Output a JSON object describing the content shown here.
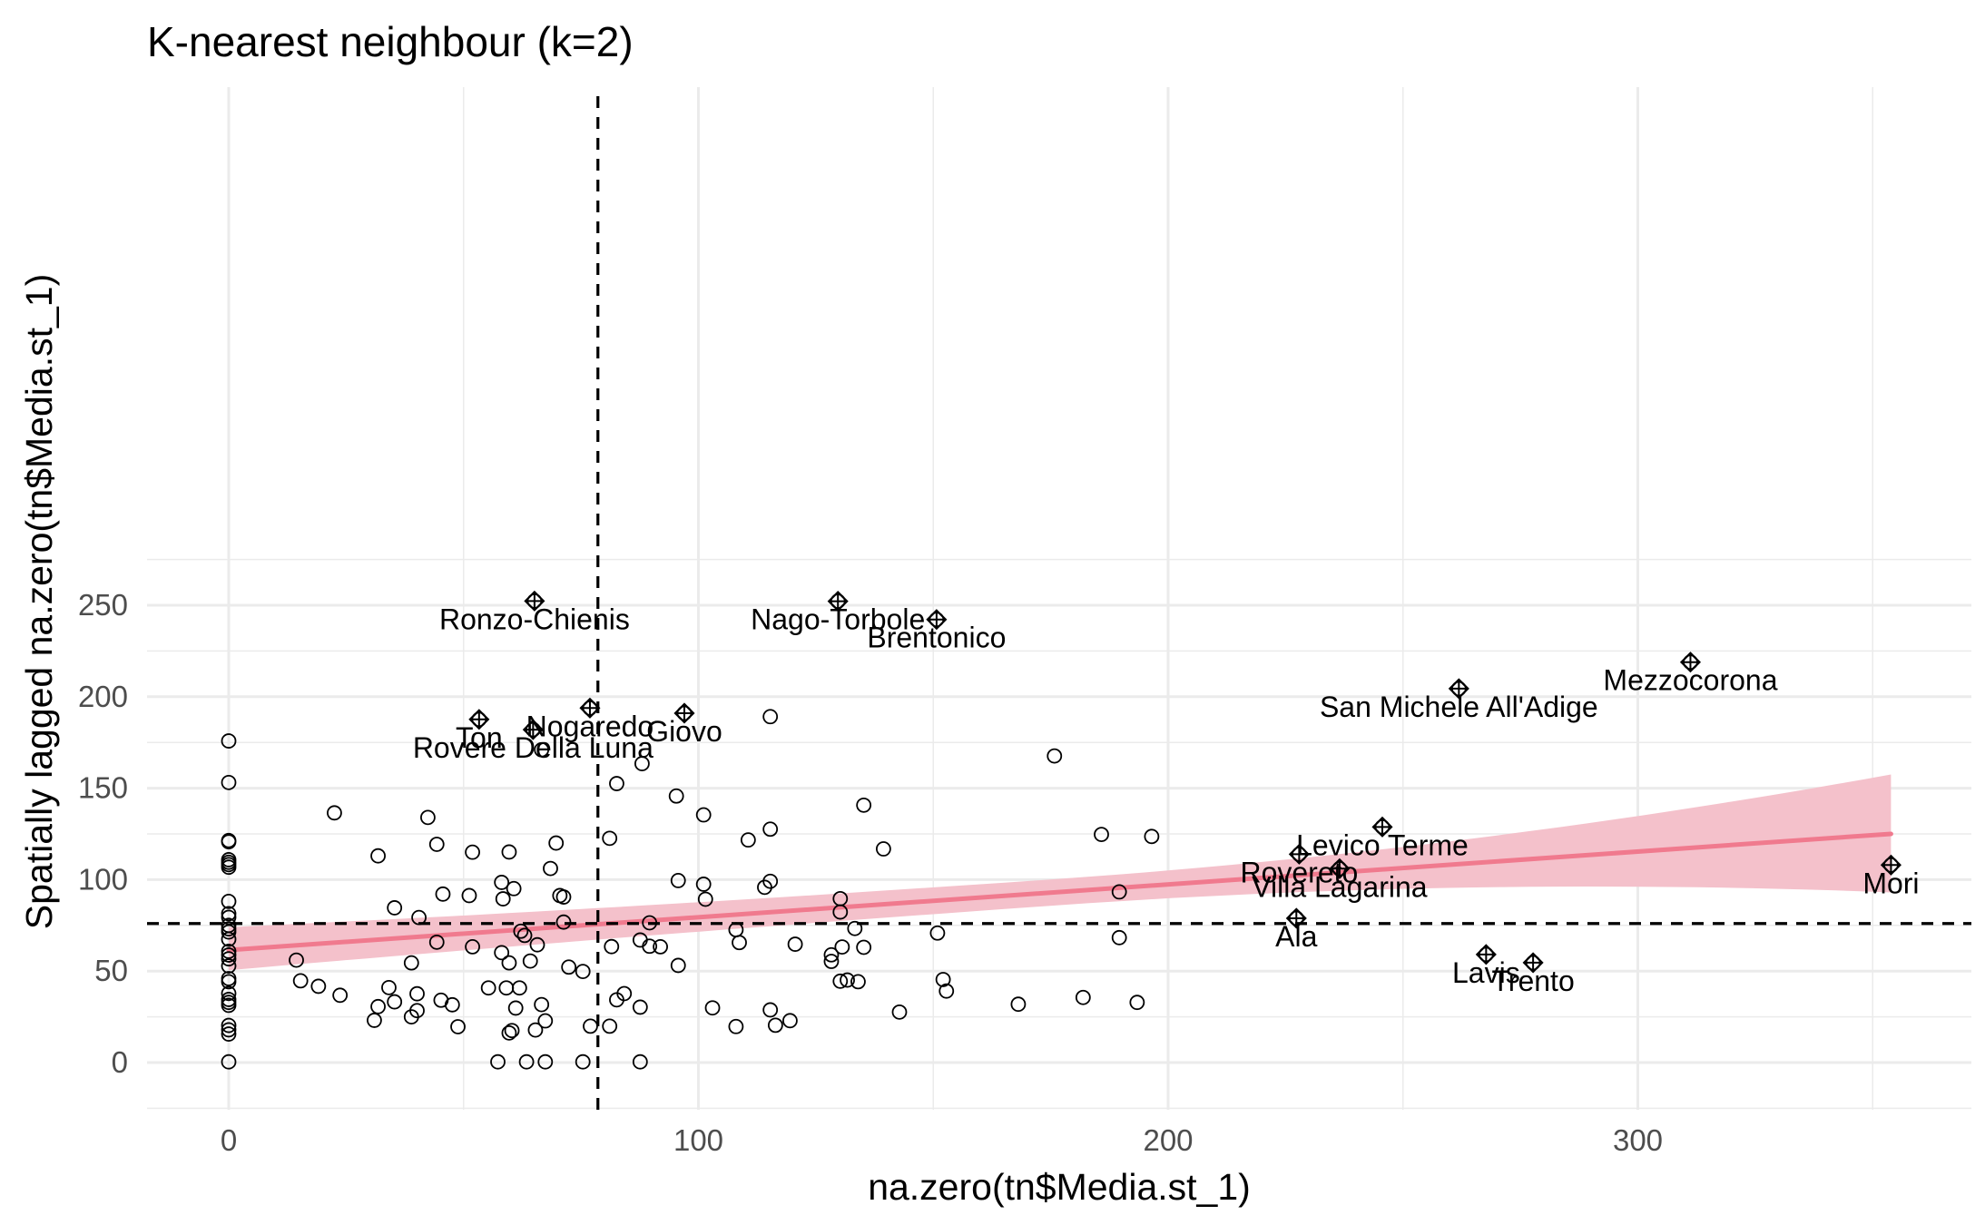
{
  "chart_data": {
    "type": "scatter",
    "title": "K-nearest neighbour (k=2)",
    "xlabel": "na.zero(tn$Media.st_1)",
    "ylabel": "Spatially lagged na.zero(tn$Media.st_1)",
    "xlim": [
      -17,
      370
    ],
    "ylim": [
      -12,
      265
    ],
    "xticks": [
      0,
      100,
      200,
      300
    ],
    "yticks": [
      0,
      50,
      100,
      150,
      200,
      250
    ],
    "xtick_labels": [
      "0",
      "100",
      "200",
      "300"
    ],
    "ytick_labels": [
      "0",
      "50",
      "100",
      "150",
      "200",
      "250"
    ],
    "grid": true,
    "reference_lines": {
      "x_mean": 78.6,
      "y_mean": 76.0
    },
    "regression": {
      "intercept": 61.5,
      "slope": 0.1795,
      "x_range": [
        0,
        353.9
      ],
      "ci_lower_at_min": 50.5,
      "ci_upper_at_min": 74.0,
      "ci_lower_at_max": 93.0,
      "ci_upper_at_max": 157.5
    },
    "colors": {
      "fit_line": "#F07A8E",
      "ci_band": "#F4C1CB",
      "points": "#000000",
      "grid": "#EBEBEB"
    },
    "influential_points": [
      {
        "label": "Ronzo-Chienis",
        "x": 65.1,
        "y": 252.3
      },
      {
        "label": "Nago-Torbole",
        "x": 129.7,
        "y": 252.2
      },
      {
        "label": "Brentonico",
        "x": 150.7,
        "y": 242.2
      },
      {
        "label": "Mezzocorona",
        "x": 311.2,
        "y": 218.9
      },
      {
        "label": "San Michele All'Adige",
        "x": 261.9,
        "y": 204.4
      },
      {
        "label": "Nogaredo",
        "x": 76.9,
        "y": 193.8
      },
      {
        "label": "Giovo",
        "x": 97.0,
        "y": 191.0
      },
      {
        "label": "Ton",
        "x": 53.3,
        "y": 187.6
      },
      {
        "label": "Rovere Della Luna",
        "x": 64.8,
        "y": 182.0
      },
      {
        "label": "Levico Terme",
        "x": 245.6,
        "y": 128.8
      },
      {
        "label": "Rovereto",
        "x": 227.9,
        "y": 113.9
      },
      {
        "label": "Villa Lagarina",
        "x": 236.5,
        "y": 106.0
      },
      {
        "label": "Mori",
        "x": 353.9,
        "y": 108.0
      },
      {
        "label": "Ala",
        "x": 227.3,
        "y": 78.9
      },
      {
        "label": "Lavis",
        "x": 267.7,
        "y": 59.1
      },
      {
        "label": "Trento",
        "x": 277.7,
        "y": 54.6
      }
    ],
    "points": [
      [
        0,
        175.8
      ],
      [
        0,
        153.1
      ],
      [
        0,
        121.4
      ],
      [
        0,
        120.7
      ],
      [
        0,
        110.9
      ],
      [
        0,
        109.5
      ],
      [
        0,
        108.2
      ],
      [
        0,
        106.8
      ],
      [
        0,
        88.1
      ],
      [
        0,
        81.4
      ],
      [
        0,
        79.4
      ],
      [
        0,
        75.0
      ],
      [
        0,
        73.1
      ],
      [
        0,
        71.4
      ],
      [
        0,
        67.4
      ],
      [
        0,
        60.8
      ],
      [
        0,
        58.8
      ],
      [
        0,
        56.7
      ],
      [
        0,
        52.8
      ],
      [
        0,
        45.9
      ],
      [
        0,
        44.2
      ],
      [
        0,
        37.8
      ],
      [
        0,
        34.5
      ],
      [
        0,
        32.9
      ],
      [
        0,
        31.3
      ],
      [
        0,
        20.3
      ],
      [
        0,
        17.9
      ],
      [
        0,
        15.6
      ],
      [
        0,
        0.4
      ],
      [
        14.4,
        56.0
      ],
      [
        15.3,
        44.7
      ],
      [
        19.1,
        41.7
      ],
      [
        22.5,
        136.5
      ],
      [
        23.7,
        36.8
      ],
      [
        31.0,
        23.1
      ],
      [
        31.8,
        30.6
      ],
      [
        31.8,
        113.0
      ],
      [
        34.1,
        41.0
      ],
      [
        35.3,
        84.6
      ],
      [
        35.3,
        33.2
      ],
      [
        38.9,
        25.0
      ],
      [
        38.9,
        54.5
      ],
      [
        40.1,
        37.6
      ],
      [
        40.1,
        28.4
      ],
      [
        40.5,
        79.3
      ],
      [
        42.4,
        134.0
      ],
      [
        44.3,
        119.3
      ],
      [
        44.3,
        65.8
      ],
      [
        45.2,
        34.1
      ],
      [
        45.6,
        92.1
      ],
      [
        47.6,
        31.6
      ],
      [
        48.8,
        19.6
      ],
      [
        51.2,
        91.3
      ],
      [
        51.9,
        63.3
      ],
      [
        51.9,
        115.0
      ],
      [
        55.3,
        40.8
      ],
      [
        57.3,
        0.4
      ],
      [
        58.1,
        98.5
      ],
      [
        58.1,
        60.1
      ],
      [
        58.4,
        89.5
      ],
      [
        59.1,
        40.8
      ],
      [
        59.7,
        16.2
      ],
      [
        59.7,
        54.5
      ],
      [
        59.7,
        115.1
      ],
      [
        60.3,
        17.5
      ],
      [
        60.7,
        95.1
      ],
      [
        61.1,
        29.8
      ],
      [
        61.9,
        40.8
      ],
      [
        62.2,
        71.8
      ],
      [
        63.0,
        69.5
      ],
      [
        63.4,
        0.4
      ],
      [
        64.2,
        55.5
      ],
      [
        65.3,
        17.8
      ],
      [
        65.7,
        64.4
      ],
      [
        66.6,
        31.7
      ],
      [
        66.6,
        171.0
      ],
      [
        67.4,
        0.4
      ],
      [
        67.4,
        22.8
      ],
      [
        68.5,
        106.1
      ],
      [
        69.7,
        120.0
      ],
      [
        70.5,
        91.3
      ],
      [
        71.3,
        76.8
      ],
      [
        71.3,
        90.5
      ],
      [
        72.4,
        52.2
      ],
      [
        75.4,
        49.8
      ],
      [
        75.4,
        0.4
      ],
      [
        77.0,
        19.9
      ],
      [
        81.1,
        19.9
      ],
      [
        81.1,
        122.6
      ],
      [
        81.5,
        63.4
      ],
      [
        82.6,
        34.3
      ],
      [
        82.6,
        152.5
      ],
      [
        84.2,
        37.7
      ],
      [
        87.6,
        0.4
      ],
      [
        87.6,
        30.3
      ],
      [
        87.6,
        67.0
      ],
      [
        88.0,
        163.4
      ],
      [
        89.6,
        76.4
      ],
      [
        89.6,
        63.6
      ],
      [
        91.9,
        63.3
      ],
      [
        95.3,
        145.7
      ],
      [
        95.7,
        99.5
      ],
      [
        95.7,
        53.1
      ],
      [
        101.1,
        97.5
      ],
      [
        101.1,
        135.4
      ],
      [
        101.5,
        89.3
      ],
      [
        103.0,
        29.9
      ],
      [
        108.0,
        72.6
      ],
      [
        108.0,
        19.7
      ],
      [
        108.7,
        65.6
      ],
      [
        110.6,
        121.7
      ],
      [
        114.1,
        95.8
      ],
      [
        115.3,
        189.1
      ],
      [
        115.3,
        99.1
      ],
      [
        115.3,
        127.6
      ],
      [
        115.3,
        28.8
      ],
      [
        116.4,
        20.4
      ],
      [
        119.5,
        22.9
      ],
      [
        120.6,
        64.7
      ],
      [
        128.3,
        55.3
      ],
      [
        128.3,
        58.9
      ],
      [
        130.2,
        44.5
      ],
      [
        130.2,
        89.6
      ],
      [
        130.2,
        82.3
      ],
      [
        130.6,
        63.2
      ],
      [
        131.7,
        45.1
      ],
      [
        133.3,
        73.3
      ],
      [
        134.0,
        44.2
      ],
      [
        135.2,
        140.7
      ],
      [
        135.2,
        63.0
      ],
      [
        139.4,
        116.8
      ],
      [
        142.8,
        27.6
      ],
      [
        150.9,
        70.8
      ],
      [
        152.1,
        45.4
      ],
      [
        152.8,
        39.1
      ],
      [
        168.1,
        31.9
      ],
      [
        175.8,
        167.6
      ],
      [
        181.9,
        35.6
      ],
      [
        185.8,
        124.7
      ],
      [
        189.6,
        68.3
      ],
      [
        189.6,
        93.3
      ],
      [
        193.4,
        32.9
      ],
      [
        196.5,
        123.6
      ]
    ]
  }
}
